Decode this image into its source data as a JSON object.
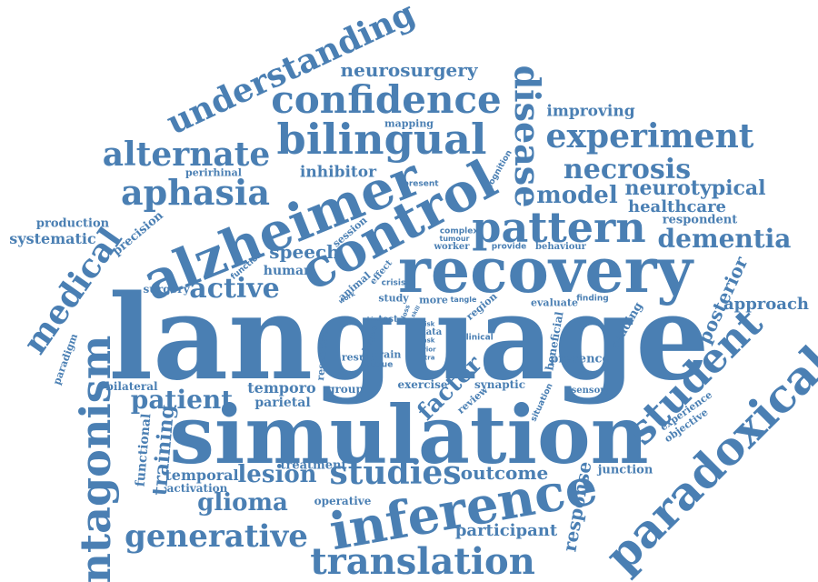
{
  "cloud": {
    "color": "#4a7fb3",
    "words": [
      {
        "text": "language"
      },
      {
        "text": "simulation"
      },
      {
        "text": "recovery"
      },
      {
        "text": "alzheimer"
      },
      {
        "text": "control"
      },
      {
        "text": "inference"
      },
      {
        "text": "translation"
      },
      {
        "text": "paradoxical"
      },
      {
        "text": "antagonism"
      },
      {
        "text": "student"
      },
      {
        "text": "bilingual"
      },
      {
        "text": "confidence"
      },
      {
        "text": "pattern"
      },
      {
        "text": "disease"
      },
      {
        "text": "experiment"
      },
      {
        "text": "understanding"
      },
      {
        "text": "alternate"
      },
      {
        "text": "aphasia"
      },
      {
        "text": "necrosis"
      },
      {
        "text": "medical"
      },
      {
        "text": "dementia"
      },
      {
        "text": "studies"
      },
      {
        "text": "generative"
      },
      {
        "text": "patient"
      },
      {
        "text": "glioma"
      },
      {
        "text": "lesion"
      },
      {
        "text": "active"
      },
      {
        "text": "model"
      },
      {
        "text": "neurotypical"
      },
      {
        "text": "neurosurgery"
      },
      {
        "text": "speech"
      },
      {
        "text": "factor"
      },
      {
        "text": "outcome"
      },
      {
        "text": "participant"
      },
      {
        "text": "response"
      },
      {
        "text": "posterior"
      },
      {
        "text": "approach"
      },
      {
        "text": "healthcare"
      },
      {
        "text": "improving"
      },
      {
        "text": "inhibitor"
      },
      {
        "text": "training"
      },
      {
        "text": "temporal"
      },
      {
        "text": "temporo"
      },
      {
        "text": "parietal"
      },
      {
        "text": "functional"
      },
      {
        "text": "systematic"
      },
      {
        "text": "production"
      },
      {
        "text": "precision"
      },
      {
        "text": "respondent"
      },
      {
        "text": "junction"
      },
      {
        "text": "experience"
      },
      {
        "text": "presence"
      },
      {
        "text": "human"
      },
      {
        "text": "treatment"
      },
      {
        "text": "activation"
      },
      {
        "text": "operative"
      },
      {
        "text": "surgery"
      },
      {
        "text": "bilateral"
      },
      {
        "text": "paradigm"
      },
      {
        "text": "perirhinal"
      },
      {
        "text": "mapping"
      },
      {
        "text": "present"
      },
      {
        "text": "cognition"
      },
      {
        "text": "session"
      },
      {
        "text": "function"
      },
      {
        "text": "animal"
      },
      {
        "text": "effect"
      },
      {
        "text": "crisis"
      },
      {
        "text": "study"
      },
      {
        "text": "more"
      },
      {
        "text": "tangle"
      },
      {
        "text": "region"
      },
      {
        "text": "evaluate"
      },
      {
        "text": "finding"
      },
      {
        "text": "reading"
      },
      {
        "text": "beneficial"
      },
      {
        "text": "clinical"
      },
      {
        "text": "complex"
      },
      {
        "text": "tumour"
      },
      {
        "text": "worker"
      },
      {
        "text": "provide"
      },
      {
        "text": "behaviour"
      },
      {
        "text": "work"
      },
      {
        "text": "test"
      },
      {
        "text": "plaque"
      },
      {
        "text": "resection"
      },
      {
        "text": "result"
      },
      {
        "text": "brain"
      },
      {
        "text": "tissue"
      },
      {
        "text": "data"
      },
      {
        "text": "task"
      },
      {
        "text": "risk"
      },
      {
        "text": "prior"
      },
      {
        "text": "intra"
      },
      {
        "text": "group"
      },
      {
        "text": "exercise"
      },
      {
        "text": "synaptic"
      },
      {
        "text": "review"
      },
      {
        "text": "situation"
      },
      {
        "text": "sensory"
      },
      {
        "text": "objective"
      },
      {
        "text": "loss"
      },
      {
        "text": "skill"
      },
      {
        "text": "bias"
      }
    ]
  }
}
